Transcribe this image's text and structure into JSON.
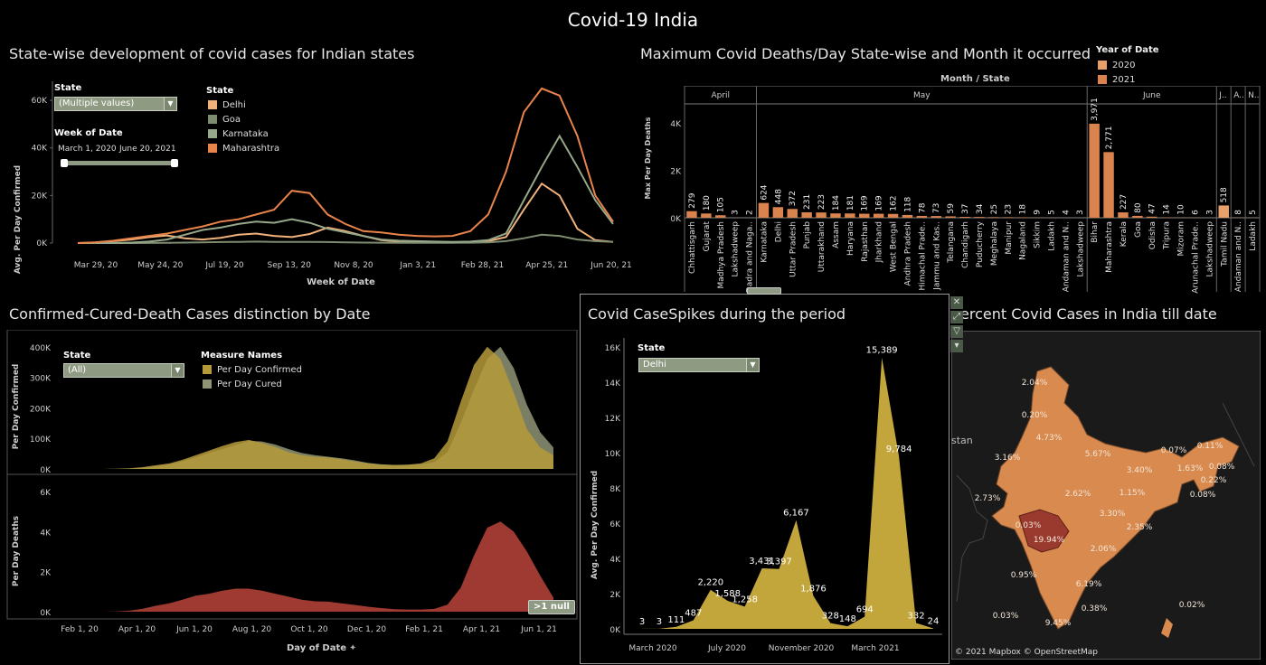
{
  "dashboard_title": "Covid-19 India",
  "panels": {
    "trend": {
      "title": "State-wise development of covid cases for Indian states",
      "state_label": "State",
      "state_value": "(Multiple values)",
      "week_label": "Week of Date",
      "range_start": "March 1, 2020",
      "range_end": "June 20, 2021",
      "legend_title": "State",
      "ylabel": "Avg. Per Day Confirmed",
      "xlabel": "Week of Date"
    },
    "deaths": {
      "title": "Maximum Covid Deaths/Day State-wise and Month it occurred",
      "header": "Month / State",
      "ylabel": "Max Per Day Deaths",
      "legend_title": "Year of Date",
      "legend": [
        "2020",
        "2021"
      ]
    },
    "ccd": {
      "title": "Confirmed-Cured-Death Cases distinction by Date",
      "state_label": "State",
      "state_value": "(All)",
      "legend_title": "Measure Names",
      "legend": [
        "Per Day Confirmed",
        "Per Day Cured"
      ],
      "ylabel_top": "Per Day Confirmed",
      "ylabel_bottom": "Per Day Deaths",
      "xlabel": "Day of Date",
      "null_badge": ">1 null"
    },
    "spikes": {
      "title": "Covid CaseSpikes during the period",
      "state_label": "State",
      "state_value": "Delhi",
      "ylabel": "Avg. Per Day Confirmed"
    },
    "map": {
      "title": "ercent Covid Cases in India till date",
      "credit": "© 2021 Mapbox © OpenStreetMap",
      "place_label": "stan"
    }
  },
  "colors": {
    "delhi": "#f0b27a",
    "goa": "#7d8b6f",
    "karnataka": "#97a88a",
    "maharashtra": "#e8844a",
    "bar2020": "#e8a06a",
    "bar2021": "#d9834f",
    "confirmed": "#b59a3a",
    "cured": "#8e9476",
    "deaths": "#9e3a32",
    "spike": "#c2a63c",
    "map_land": "#d98a4e",
    "map_highlight": "#9a3a2f"
  },
  "chart_data": [
    {
      "type": "line",
      "name": "trend",
      "x_ticks": [
        "Mar 29, 20",
        "May 24, 20",
        "Jul 19, 20",
        "Sep 13, 20",
        "Nov 8, 20",
        "Jan 3, 21",
        "Feb 28, 21",
        "Apr 25, 21",
        "Jun 20, 21"
      ],
      "y_ticks": [
        "0K",
        "20K",
        "40K",
        "60K"
      ],
      "ylim": [
        0,
        68000
      ],
      "series": [
        {
          "name": "Delhi",
          "values": [
            0,
            300,
            800,
            1500,
            2500,
            3200,
            2000,
            1500,
            2200,
            3500,
            4000,
            3000,
            2500,
            3800,
            6500,
            5000,
            3000,
            1200,
            600,
            400,
            300,
            300,
            400,
            800,
            2500,
            14000,
            25000,
            20000,
            6000,
            1200,
            500
          ]
        },
        {
          "name": "Goa",
          "values": [
            0,
            0,
            0,
            0,
            50,
            100,
            200,
            300,
            400,
            500,
            600,
            500,
            500,
            500,
            400,
            300,
            200,
            150,
            100,
            100,
            100,
            100,
            150,
            300,
            800,
            2000,
            3500,
            3000,
            1500,
            800,
            500
          ]
        },
        {
          "name": "Karnataka",
          "values": [
            0,
            0,
            50,
            200,
            600,
            1500,
            3500,
            5500,
            6500,
            8000,
            9000,
            8500,
            10000,
            8500,
            6000,
            4500,
            3000,
            1500,
            1000,
            800,
            600,
            500,
            600,
            1200,
            4000,
            18000,
            32000,
            45000,
            32000,
            18000,
            8000
          ]
        },
        {
          "name": "Maharashtra",
          "values": [
            0,
            300,
            1000,
            2000,
            3000,
            4000,
            5500,
            7000,
            9000,
            10000,
            12000,
            14000,
            22000,
            21000,
            12000,
            8000,
            5000,
            4500,
            3500,
            3000,
            2800,
            3000,
            5000,
            12000,
            30000,
            55000,
            65000,
            62000,
            45000,
            20000,
            9000
          ]
        }
      ]
    },
    {
      "type": "bar",
      "name": "max_deaths",
      "y_ticks": [
        "0K",
        "2K",
        "4K"
      ],
      "ylim": [
        0,
        4500
      ],
      "months": [
        {
          "label": "April",
          "states": [
            {
              "name": "Chhattisgarh",
              "value": 279,
              "year": "2021"
            },
            {
              "name": "Gujarat",
              "value": 180,
              "year": "2021"
            },
            {
              "name": "Madhya Pradesh",
              "value": 105,
              "year": "2021"
            },
            {
              "name": "Lakshadweep",
              "value": 3,
              "year": "2021"
            },
            {
              "name": "Dadra and Naga..",
              "value": 2,
              "year": "2021"
            }
          ]
        },
        {
          "label": "May",
          "states": [
            {
              "name": "Karnataka",
              "value": 624,
              "year": "2021"
            },
            {
              "name": "Delhi",
              "value": 448,
              "year": "2021"
            },
            {
              "name": "Uttar Pradesh",
              "value": 372,
              "year": "2021"
            },
            {
              "name": "Punjab",
              "value": 231,
              "year": "2021"
            },
            {
              "name": "Uttarakhand",
              "value": 223,
              "year": "2021"
            },
            {
              "name": "Assam",
              "value": 184,
              "year": "2021"
            },
            {
              "name": "Haryana",
              "value": 181,
              "year": "2021"
            },
            {
              "name": "Rajasthan",
              "value": 169,
              "year": "2021"
            },
            {
              "name": "Jharkhand",
              "value": 169,
              "year": "2021"
            },
            {
              "name": "West Bengal",
              "value": 162,
              "year": "2021"
            },
            {
              "name": "Andhra Pradesh",
              "value": 118,
              "year": "2021"
            },
            {
              "name": "Himachal Prade..",
              "value": 78,
              "year": "2021"
            },
            {
              "name": "Jammu and Kas..",
              "value": 73,
              "year": "2021"
            },
            {
              "name": "Telangana",
              "value": 59,
              "year": "2021"
            },
            {
              "name": "Chandigarh",
              "value": 37,
              "year": "2021"
            },
            {
              "name": "Puducherry",
              "value": 34,
              "year": "2021"
            },
            {
              "name": "Meghalaya",
              "value": 25,
              "year": "2021"
            },
            {
              "name": "Manipur",
              "value": 23,
              "year": "2021"
            },
            {
              "name": "Nagaland",
              "value": 18,
              "year": "2021"
            },
            {
              "name": "Sikkim",
              "value": 9,
              "year": "2021"
            },
            {
              "name": "Ladakh",
              "value": 5,
              "year": "2021"
            },
            {
              "name": "Andaman and N..",
              "value": 4,
              "year": "2021"
            },
            {
              "name": "Lakshadweep",
              "value": 3,
              "year": "2021"
            }
          ]
        },
        {
          "label": "June",
          "states": [
            {
              "name": "Bihar",
              "value": 3971,
              "year": "2021"
            },
            {
              "name": "Maharashtra",
              "value": 2771,
              "year": "2021"
            },
            {
              "name": "Kerala",
              "value": 227,
              "year": "2021"
            },
            {
              "name": "Goa",
              "value": 80,
              "year": "2021"
            },
            {
              "name": "Odisha",
              "value": 47,
              "year": "2021"
            },
            {
              "name": "Tripura",
              "value": 14,
              "year": "2021"
            },
            {
              "name": "Mizoram",
              "value": 10,
              "year": "2021"
            },
            {
              "name": "Arunachal Prade..",
              "value": 6,
              "year": "2021"
            },
            {
              "name": "Lakshadweep",
              "value": 3,
              "year": "2021"
            }
          ]
        },
        {
          "label": "J..",
          "states": [
            {
              "name": "Tamil Nadu",
              "value": 518,
              "year": "2020"
            }
          ]
        },
        {
          "label": "A..",
          "states": [
            {
              "name": "Andaman and N..",
              "value": 8,
              "year": "2020"
            }
          ]
        },
        {
          "label": "N..",
          "states": [
            {
              "name": "Ladakh",
              "value": 5,
              "year": "2020"
            }
          ]
        }
      ]
    },
    {
      "type": "area",
      "name": "confirmed_cured",
      "x_ticks": [
        "Feb 1, 20",
        "Apr 1, 20",
        "Jun 1, 20",
        "Aug 1, 20",
        "Oct 1, 20",
        "Dec 1, 20",
        "Feb 1, 21",
        "Apr 1, 21",
        "Jun 1, 21"
      ],
      "y_ticks": [
        "0K",
        "100K",
        "200K",
        "300K",
        "400K"
      ],
      "ylim": [
        0,
        420000
      ],
      "series": [
        {
          "name": "Per Day Confirmed",
          "values": [
            0,
            0,
            0,
            0,
            500,
            2000,
            6000,
            12000,
            18000,
            30000,
            45000,
            60000,
            75000,
            88000,
            95000,
            85000,
            72000,
            55000,
            45000,
            40000,
            38000,
            32000,
            25000,
            18000,
            14000,
            13000,
            14000,
            18000,
            35000,
            90000,
            220000,
            340000,
            400000,
            360000,
            250000,
            130000,
            70000,
            45000
          ]
        },
        {
          "name": "Per Day Cured",
          "values": [
            0,
            0,
            0,
            0,
            200,
            1000,
            3500,
            9000,
            15000,
            25000,
            38000,
            52000,
            65000,
            78000,
            92000,
            90000,
            80000,
            65000,
            52000,
            45000,
            40000,
            35000,
            28000,
            20000,
            15000,
            13000,
            13000,
            15000,
            22000,
            55000,
            150000,
            260000,
            360000,
            400000,
            330000,
            210000,
            120000,
            70000
          ]
        }
      ]
    },
    {
      "type": "area",
      "name": "deaths",
      "y_ticks": [
        "0K",
        "2K",
        "4K",
        "6K"
      ],
      "ylim": [
        0,
        6500
      ],
      "series": [
        {
          "name": "Per Day Deaths",
          "values": [
            0,
            0,
            0,
            0,
            10,
            50,
            150,
            300,
            420,
            600,
            800,
            900,
            1050,
            1150,
            1150,
            1050,
            900,
            750,
            600,
            520,
            500,
            420,
            340,
            250,
            180,
            120,
            110,
            110,
            140,
            350,
            1200,
            2800,
            4200,
            4500,
            4000,
            3000,
            1800,
            700
          ]
        }
      ]
    },
    {
      "type": "area",
      "name": "delhi_spikes",
      "x_ticks": [
        "March 2020",
        "July 2020",
        "November 2020",
        "March 2021"
      ],
      "y_ticks": [
        "0K",
        "2K",
        "4K",
        "6K",
        "8K",
        "10K",
        "12K",
        "14K",
        "16K"
      ],
      "ylim": [
        0,
        16500
      ],
      "points": [
        {
          "label": "3",
          "value": 3
        },
        {
          "label": "3",
          "value": 3
        },
        {
          "label": "111",
          "value": 111
        },
        {
          "label": "487",
          "value": 487
        },
        {
          "label": "2,220",
          "value": 2220
        },
        {
          "label": "1,588",
          "value": 1588
        },
        {
          "label": "1,258",
          "value": 1258
        },
        {
          "label": "3,431",
          "value": 3431
        },
        {
          "label": "3,397",
          "value": 3397
        },
        {
          "label": "6,167",
          "value": 6167
        },
        {
          "label": "1,876",
          "value": 1876
        },
        {
          "label": "328",
          "value": 328
        },
        {
          "label": "148",
          "value": 148
        },
        {
          "label": "694",
          "value": 694
        },
        {
          "label": "15,389",
          "value": 15389
        },
        {
          "label": "9,784",
          "value": 9784
        },
        {
          "label": "332",
          "value": 332
        },
        {
          "label": "24",
          "value": 24
        }
      ]
    },
    {
      "type": "map",
      "name": "india_percent",
      "labels": [
        "2.04%",
        "0.20%",
        "4.73%",
        "3.16%",
        "5.67%",
        "0.07%",
        "0.11%",
        "3.40%",
        "1.63%",
        "0.08%",
        "0.22%",
        "0.08%",
        "2.62%",
        "1.15%",
        "2.73%",
        "3.30%",
        "2.35%",
        "0.03%",
        "19.94%",
        "2.06%",
        "0.95%",
        "6.19%",
        "0.38%",
        "0.03%",
        "0.02%",
        "9.45%"
      ]
    }
  ]
}
